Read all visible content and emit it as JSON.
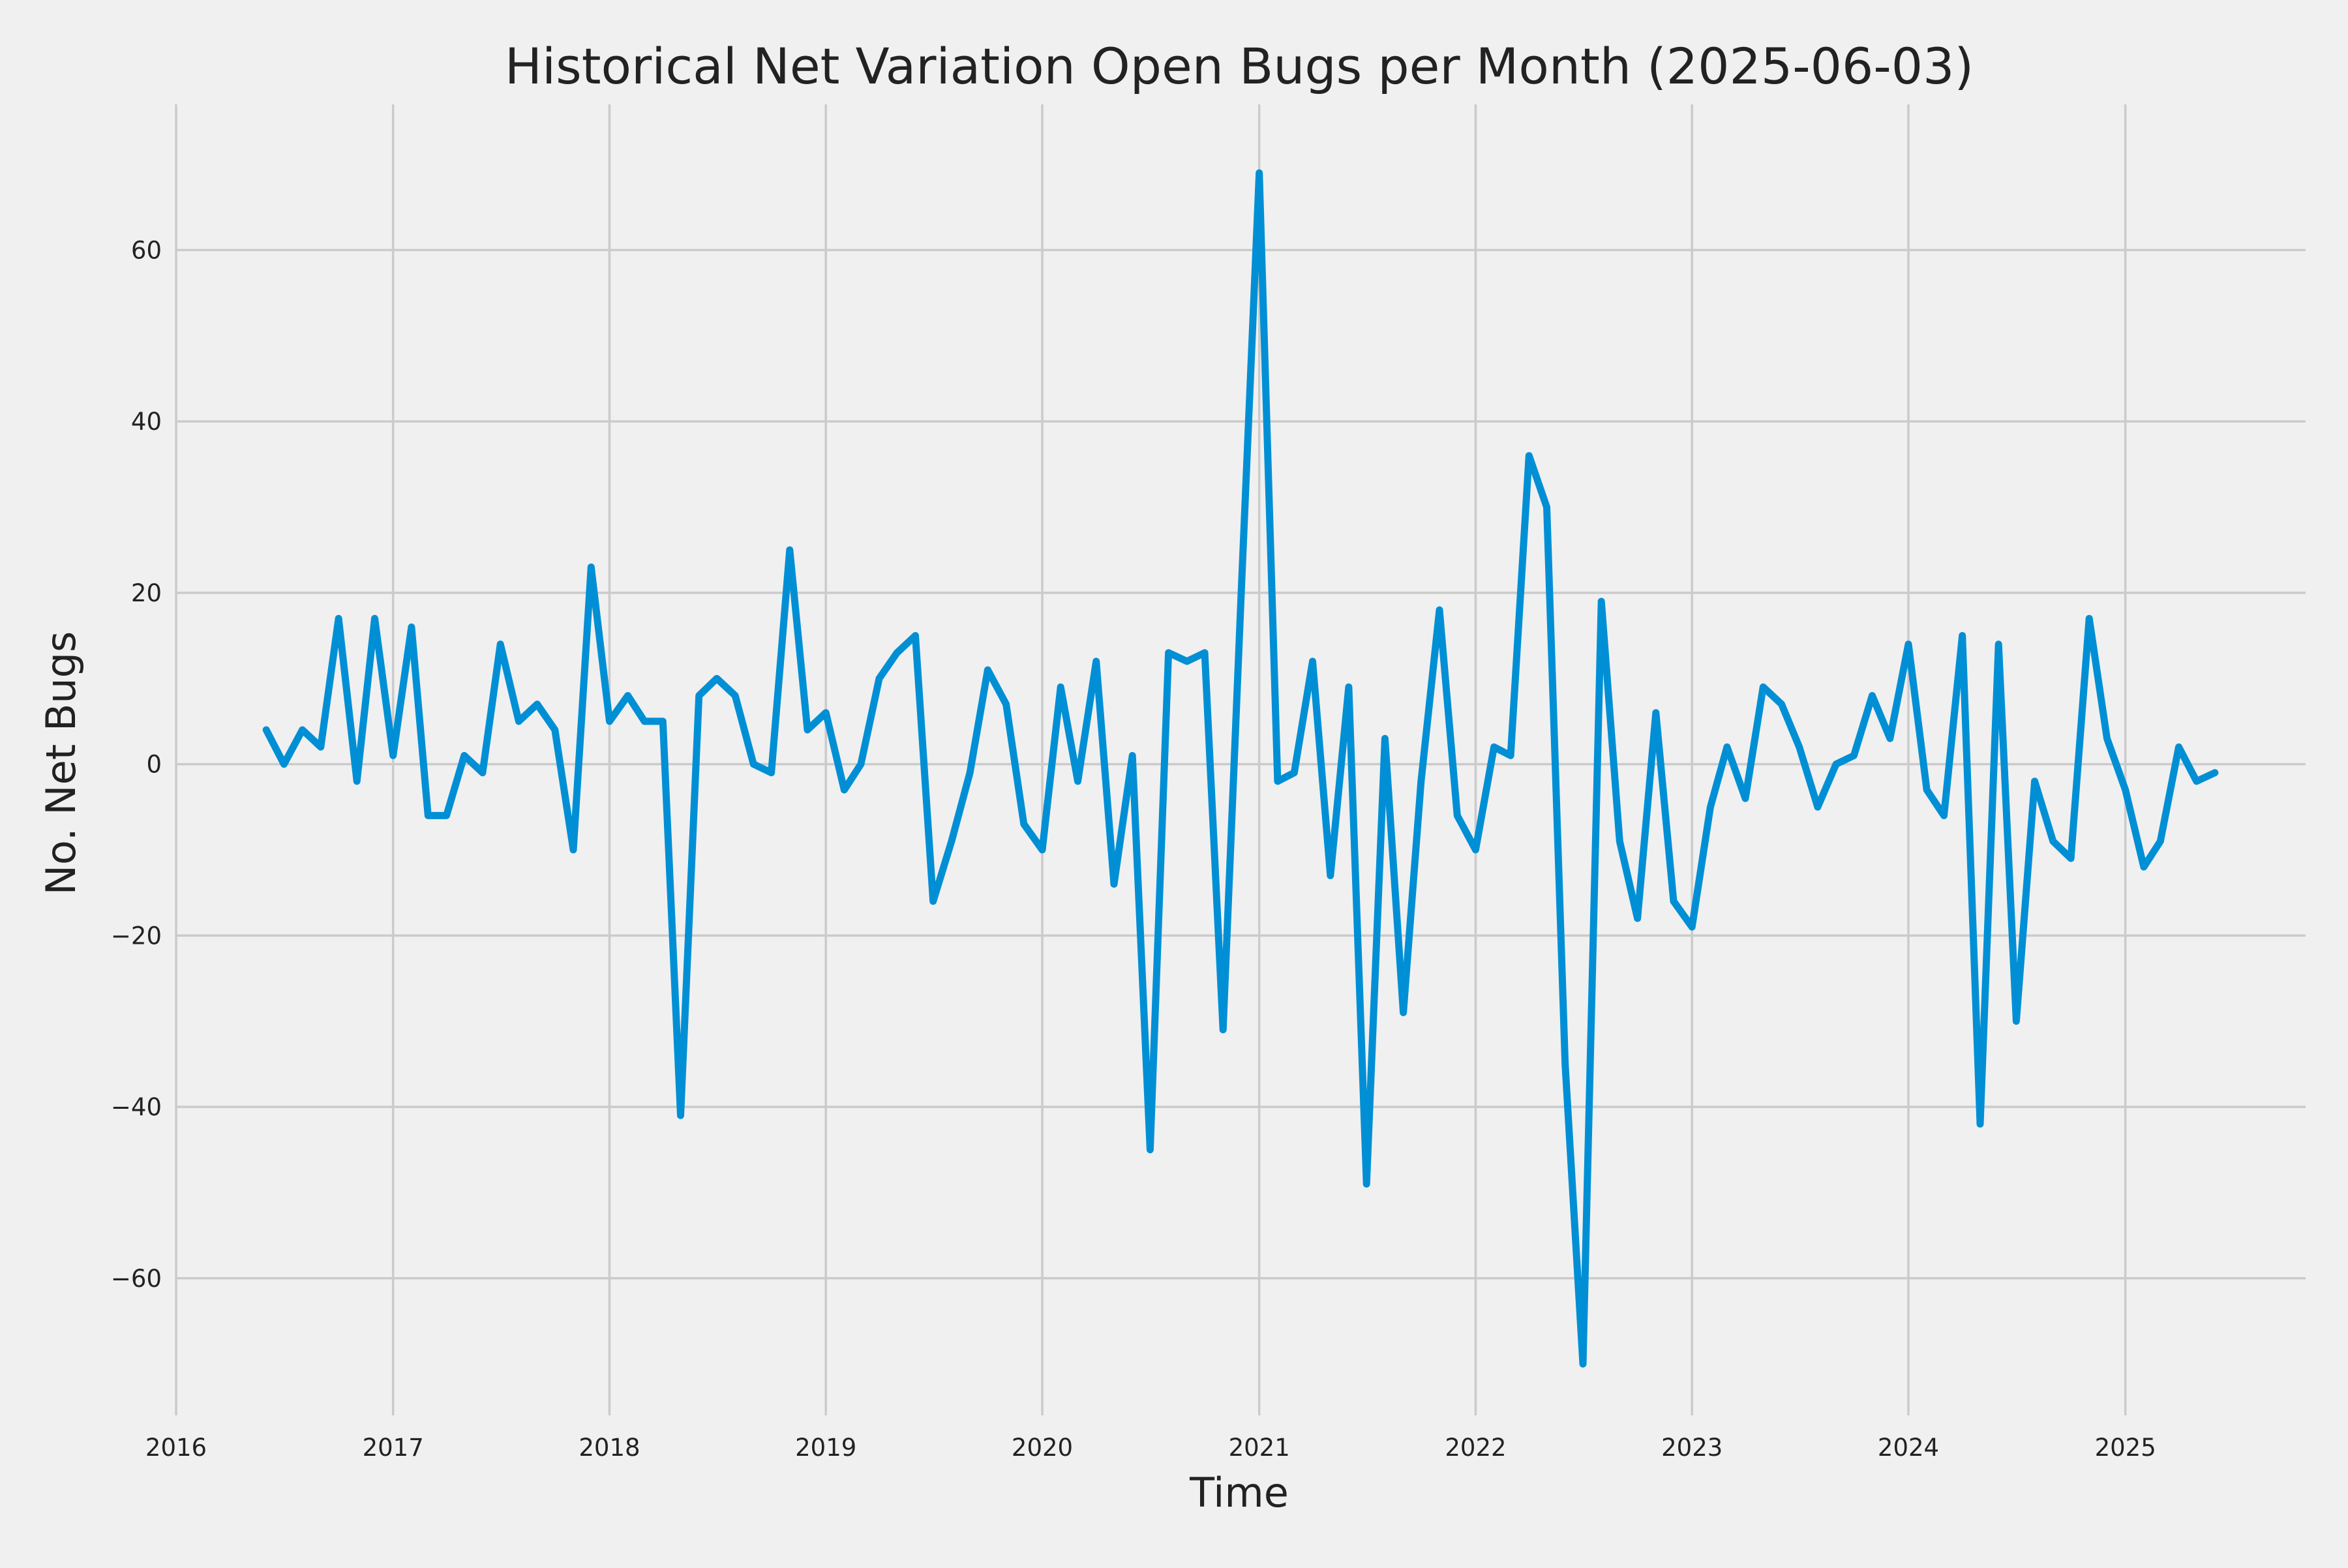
{
  "chart_data": {
    "type": "line",
    "title": "Historical Net Variation Open Bugs per Month (2025-06-03)",
    "xlabel": "Time",
    "ylabel": "No. Net Bugs",
    "xlim": [
      "2016-01-01",
      "2025-11-01"
    ],
    "ylim": [
      -76,
      77
    ],
    "x_ticks": [
      "2016",
      "2017",
      "2018",
      "2019",
      "2020",
      "2021",
      "2022",
      "2023",
      "2024",
      "2025"
    ],
    "y_ticks": [
      -60,
      -40,
      -20,
      0,
      20,
      40,
      60
    ],
    "grid": true,
    "line_color": "#008fd5",
    "series": [
      {
        "x": [
          "2016-06",
          "2016-07",
          "2016-08",
          "2016-09",
          "2016-10",
          "2016-11",
          "2016-12",
          "2017-01",
          "2017-02",
          "2017-03",
          "2017-04",
          "2017-05",
          "2017-06",
          "2017-07",
          "2017-08",
          "2017-09",
          "2017-10",
          "2017-11",
          "2017-12",
          "2018-01",
          "2018-02",
          "2018-03",
          "2018-04",
          "2018-05",
          "2018-06",
          "2018-07",
          "2018-08",
          "2018-09",
          "2018-10",
          "2018-11",
          "2018-12",
          "2019-01",
          "2019-02",
          "2019-03",
          "2019-04",
          "2019-05",
          "2019-06",
          "2019-07",
          "2019-08",
          "2019-09",
          "2019-10",
          "2019-11",
          "2019-12",
          "2020-01",
          "2020-02",
          "2020-03",
          "2020-04",
          "2020-05",
          "2020-06",
          "2020-07",
          "2020-08",
          "2020-09",
          "2020-10",
          "2020-11",
          "2020-12",
          "2021-01",
          "2021-02",
          "2021-03",
          "2021-04",
          "2021-05",
          "2021-06",
          "2021-07",
          "2021-08",
          "2021-09",
          "2021-10",
          "2021-11",
          "2021-12",
          "2022-01",
          "2022-02",
          "2022-03",
          "2022-04",
          "2022-05",
          "2022-06",
          "2022-07",
          "2022-08",
          "2022-09",
          "2022-10",
          "2022-11",
          "2022-12",
          "2023-01",
          "2023-02",
          "2023-03",
          "2023-04",
          "2023-05",
          "2023-06",
          "2023-07",
          "2023-08",
          "2023-09",
          "2023-10",
          "2023-11",
          "2023-12",
          "2024-01",
          "2024-02",
          "2024-03",
          "2024-04",
          "2024-05",
          "2024-06",
          "2024-07",
          "2024-08",
          "2024-09",
          "2024-10",
          "2024-11",
          "2024-12",
          "2025-01",
          "2025-02",
          "2025-03",
          "2025-04",
          "2025-05",
          "2025-06"
        ],
        "values": [
          4,
          0,
          4,
          2,
          17,
          -2,
          17,
          1,
          16,
          -6,
          -6,
          1,
          -1,
          14,
          5,
          7,
          4,
          -10,
          23,
          5,
          8,
          5,
          5,
          -41,
          8,
          10,
          8,
          0,
          -1,
          25,
          4,
          6,
          -3,
          0,
          10,
          13,
          15,
          -16,
          -9,
          -1,
          11,
          7,
          -7,
          -10,
          9,
          -2,
          12,
          -14,
          1,
          -45,
          13,
          12,
          13,
          -31,
          19,
          69,
          -2,
          -1,
          12,
          -13,
          9,
          -49,
          3,
          -29,
          -2,
          18,
          -6,
          -10,
          2,
          1,
          36,
          30,
          -35,
          -70,
          19,
          -9,
          -18,
          6,
          -16,
          -19,
          -5,
          2,
          -4,
          9,
          7,
          2,
          -5,
          0,
          1,
          8,
          3,
          14,
          -3,
          -6,
          15,
          -42,
          14,
          -30,
          -2,
          -9,
          -11,
          17,
          3,
          -3,
          -12,
          -9,
          2,
          -2,
          -1
        ]
      }
    ]
  }
}
